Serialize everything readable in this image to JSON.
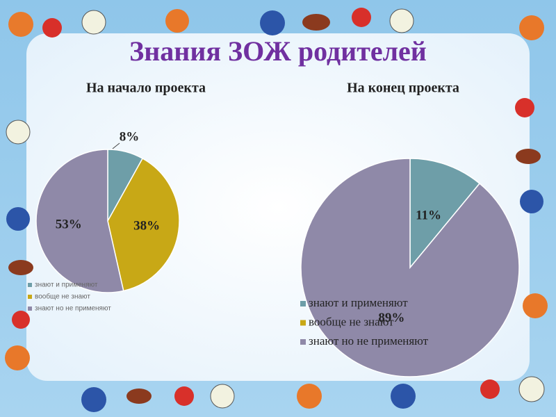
{
  "title": "Знания ЗОЖ родителей",
  "chart_data": [
    {
      "type": "pie",
      "title": "На начало проекта",
      "categories": [
        "знают и применяют",
        "вообще не знают",
        "знают но не применяют"
      ],
      "values": [
        8,
        38,
        53
      ],
      "value_labels": [
        "8%",
        "38%",
        "53%"
      ],
      "colors": [
        "#6e9ea8",
        "#c8a816",
        "#8f89a8"
      ]
    },
    {
      "type": "pie",
      "title": "На конец проекта",
      "categories": [
        "знают и применяют",
        "вообще не знают",
        "знают но не применяют"
      ],
      "values": [
        11,
        0,
        89
      ],
      "value_labels": [
        "11%",
        null,
        "89%"
      ],
      "colors": [
        "#6e9ea8",
        "#c8a816",
        "#8f89a8"
      ]
    }
  ]
}
